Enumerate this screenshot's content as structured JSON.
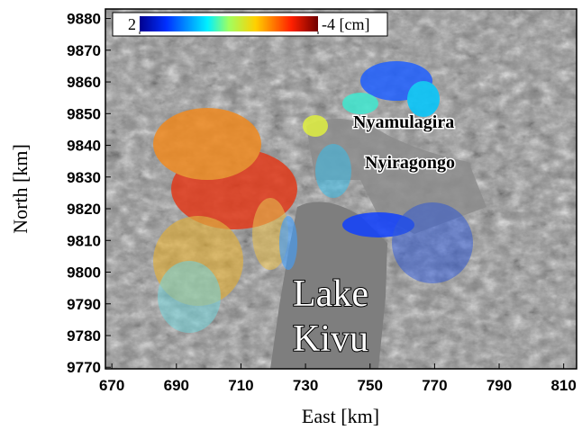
{
  "map": {
    "x_label": "East [km]",
    "y_label": "North [km]",
    "xlim": [
      668,
      814
    ],
    "ylim": [
      9769.5,
      9883
    ],
    "xticks": [
      670,
      690,
      710,
      730,
      750,
      770,
      790,
      810
    ],
    "yticks": [
      9770,
      9780,
      9790,
      9800,
      9810,
      9820,
      9830,
      9840,
      9850,
      9860,
      9870,
      9880
    ],
    "colorbar": {
      "ticks": [
        2,
        {
          "value": -4,
          "label": "-4 [cm]"
        }
      ]
    },
    "places": {
      "volcano_1": "Nyamulagira",
      "volcano_2": "Nyiragongo",
      "lake_line_1": "Lake",
      "lake_line_2": "Kivu"
    }
  }
}
